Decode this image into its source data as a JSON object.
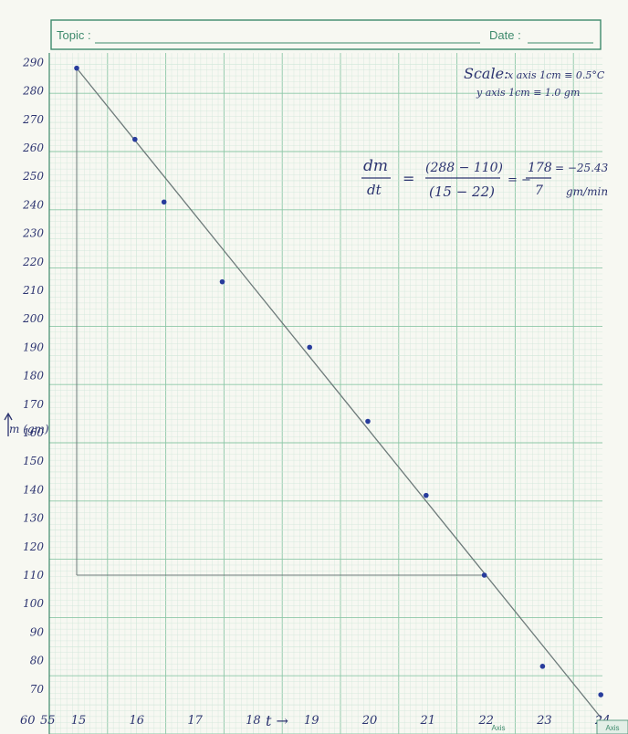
{
  "header": {
    "topic_label": "Topic :",
    "date_label": "Date :"
  },
  "footer": {
    "axis_label": "Axis",
    "brand": "Axis"
  },
  "colors": {
    "grid_minor": "#cfe6d9",
    "grid_major": "#8cc7a7",
    "ink": "#2c3470",
    "dot": "#283c9c",
    "line": "#6d7a7a",
    "header_green": "#3e8a6c"
  },
  "chart_data": {
    "type": "scatter",
    "xlabel": "t →",
    "ylabel": "m (gm)",
    "xlim": [
      14.5,
      24
    ],
    "ylim": [
      60,
      290
    ],
    "x_ticks": [
      15,
      16,
      17,
      18,
      19,
      20,
      21,
      22,
      23,
      24
    ],
    "x_tick_labels": [
      "15",
      "16",
      "17",
      "18",
      "19",
      "20",
      "21",
      "22",
      "23",
      "24"
    ],
    "y_ticks": [
      70,
      80,
      90,
      100,
      110,
      120,
      130,
      140,
      150,
      160,
      170,
      180,
      190,
      200,
      210,
      220,
      230,
      240,
      250,
      260,
      270,
      280,
      290
    ],
    "y_tick_labels": [
      "70",
      "80",
      "90",
      "100",
      "110",
      "120",
      "130",
      "140",
      "150",
      "160",
      "170",
      "180",
      "190",
      "200",
      "210",
      "220",
      "230",
      "240",
      "250",
      "260",
      "270",
      "280",
      "290"
    ],
    "origin_label": "60",
    "origin_x_label": "55",
    "series": [
      {
        "x": [
          15,
          16,
          16.5,
          17.5,
          19,
          20,
          21,
          22,
          23,
          24
        ],
        "y": [
          288,
          263,
          241,
          213,
          190,
          164,
          138,
          110,
          78,
          68
        ]
      }
    ],
    "fit_line": {
      "x": [
        15,
        24
      ],
      "y": [
        288,
        60
      ]
    },
    "construction": {
      "x": [
        15,
        22
      ],
      "y": [
        288,
        110
      ]
    },
    "grid": true,
    "annotations": {
      "scale_title": "Scale:",
      "scale_x": "x axis 1cm ≡ 0.5°C",
      "scale_y": "y axis 1cm ≡ 1.0 gm",
      "slope_lhs_num": "dm",
      "slope_lhs_den": "dt",
      "slope_eq": "=",
      "slope_num": "(288 − 110)",
      "slope_den": "(15 − 22)",
      "slope_eq2": "= −",
      "slope_frac_num": "178",
      "slope_frac_den": "7",
      "slope_result": "= −25.43",
      "slope_unit": "gm/min"
    }
  }
}
